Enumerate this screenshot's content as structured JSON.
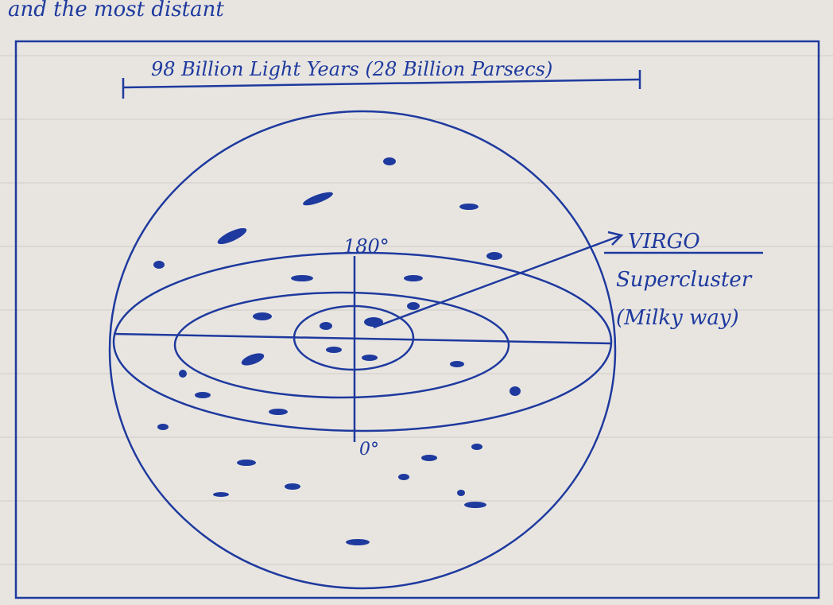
{
  "header": {
    "text": "and the most distant"
  },
  "diagram": {
    "scale_label": "98 Billion Light Years (28 Billion Parsecs)",
    "top_angle": "180°",
    "bottom_angle": "0°",
    "callout": {
      "lines": [
        "VIRGO",
        "Supercluster",
        "(Milky way)"
      ]
    }
  }
}
